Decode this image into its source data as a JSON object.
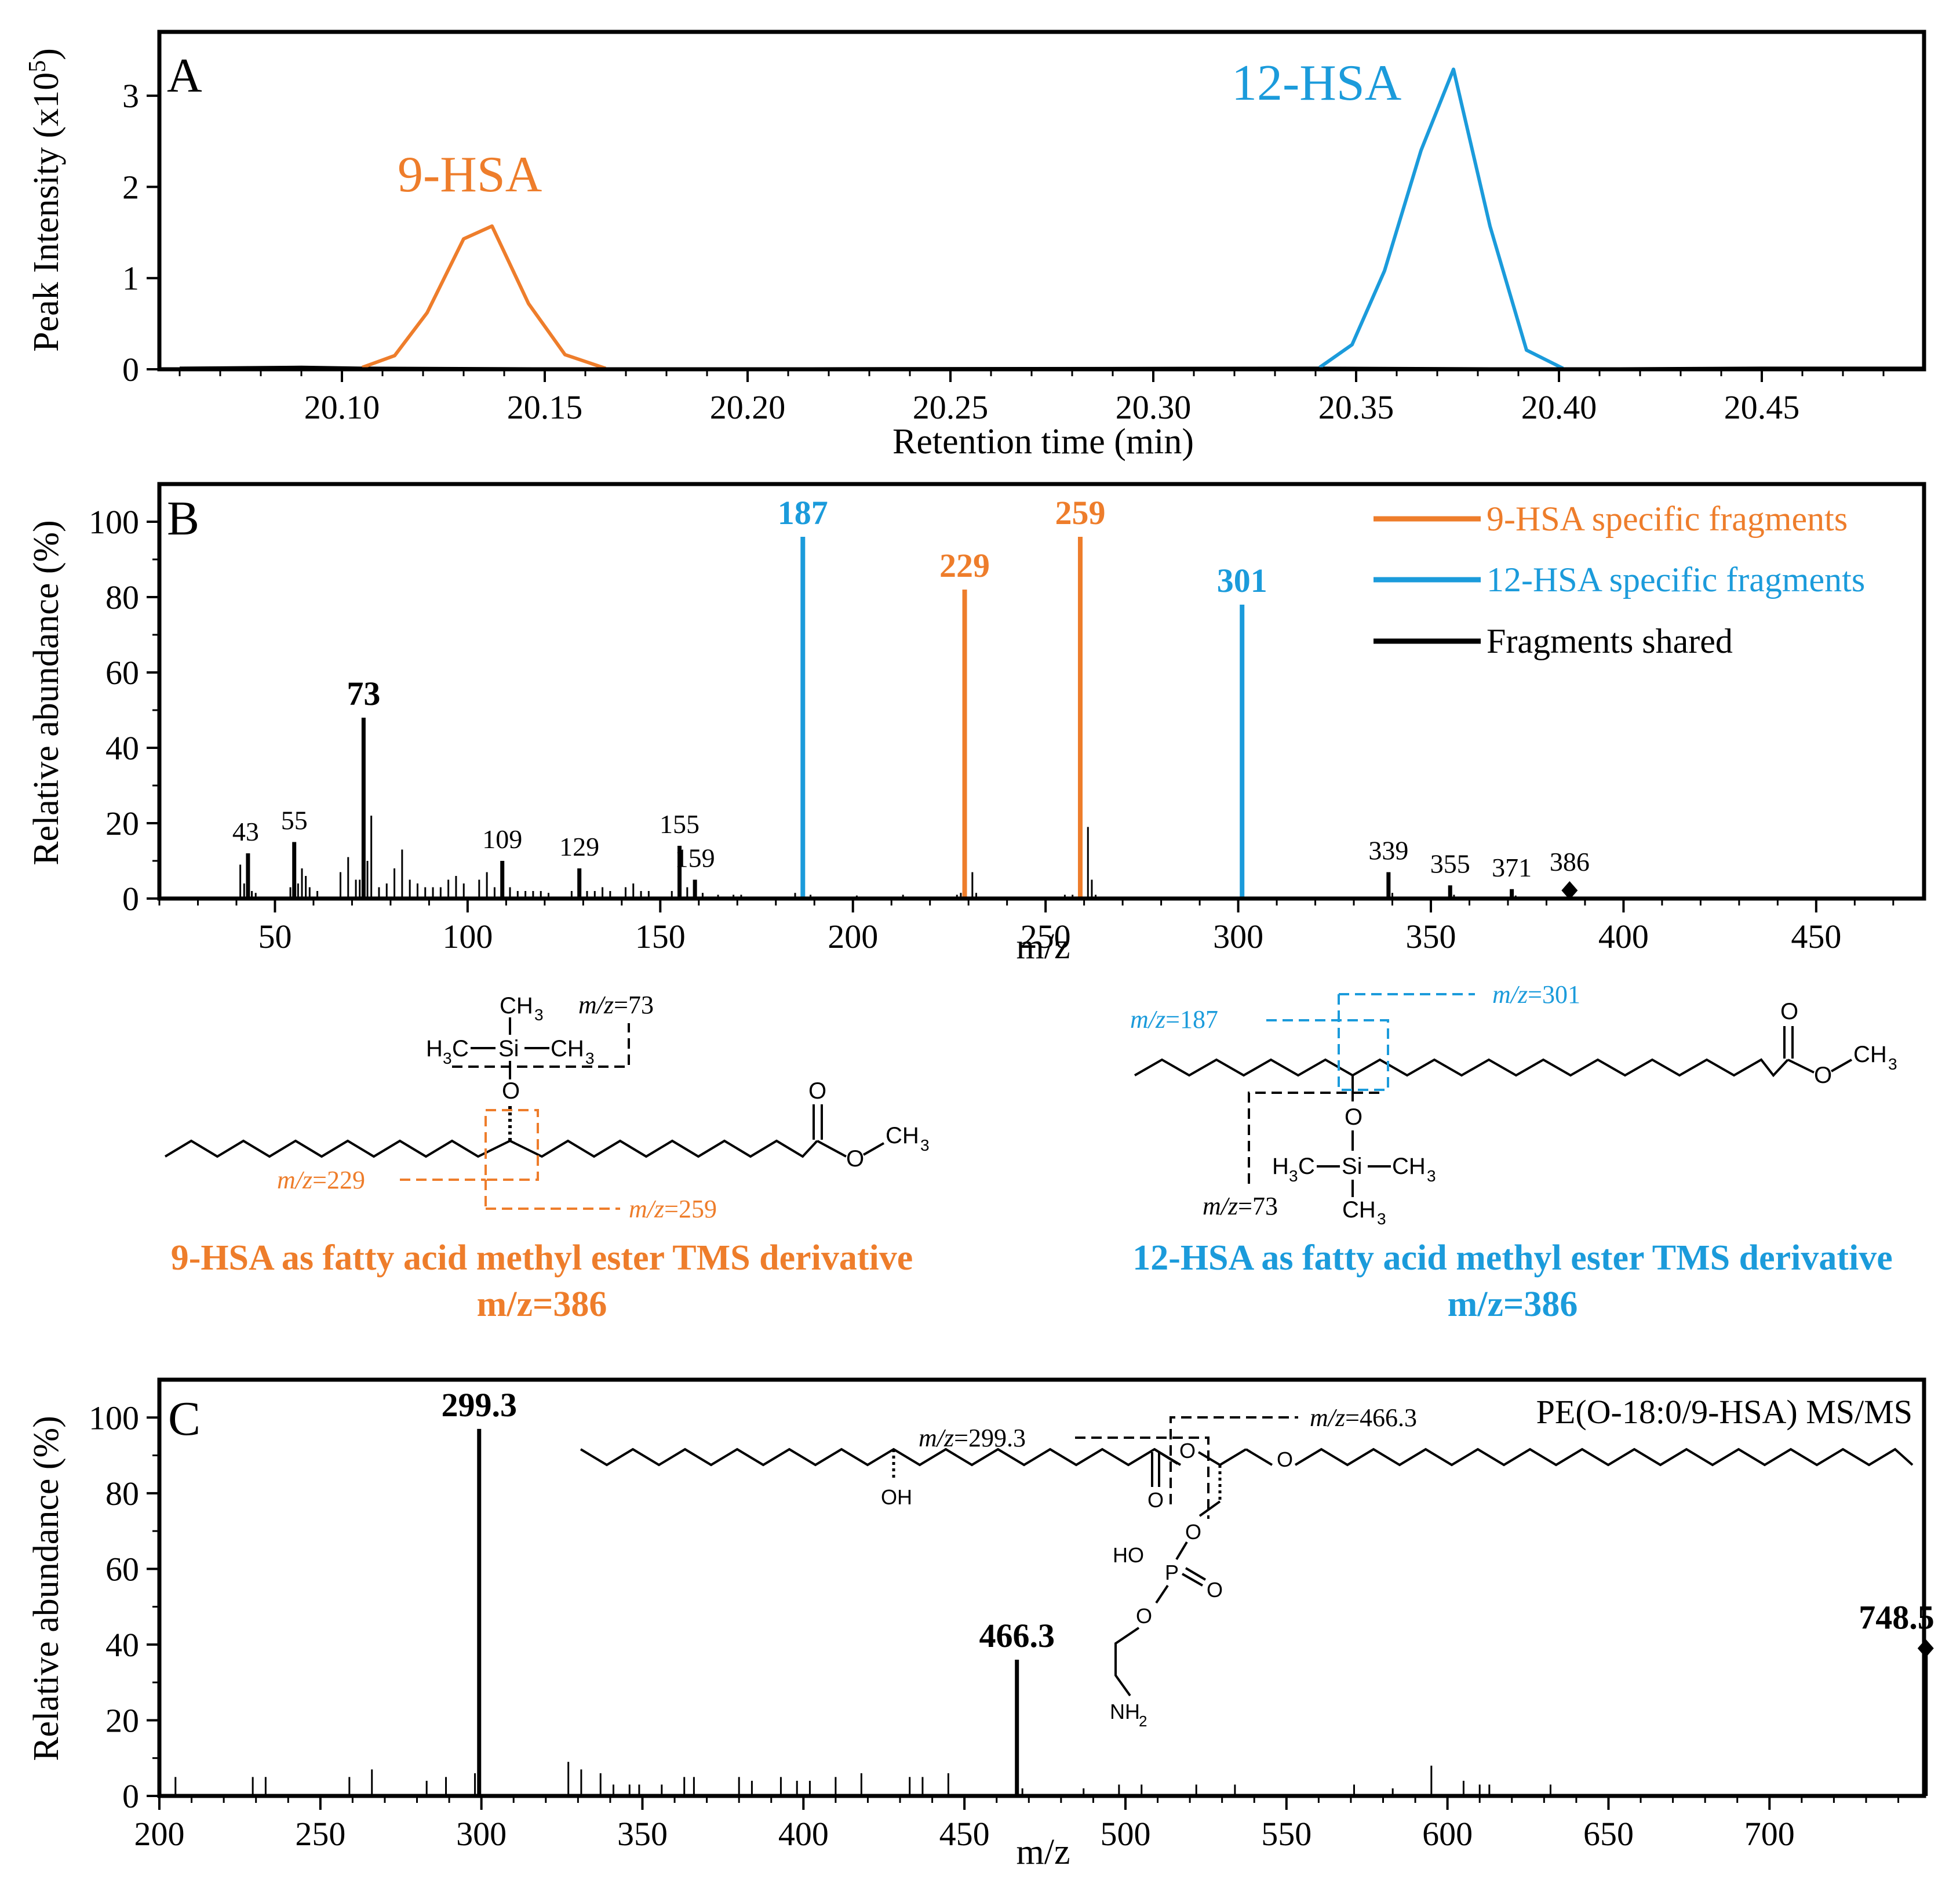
{
  "colors": {
    "orange": "#EE7D2B",
    "blue": "#1B9BDB",
    "black": "#000000"
  },
  "chart_data": [
    {
      "type": "line",
      "panel": "A",
      "xlabel": "Retention time (min)",
      "ylabel": "Peak Intensity (x10",
      "ylabel_sup": "5",
      "ylabel_end": ")",
      "xlim": [
        20.055,
        20.49
      ],
      "ylim": [
        0,
        3.7
      ],
      "xticks": [
        20.1,
        20.15,
        20.2,
        20.25,
        20.3,
        20.35,
        20.4,
        20.45
      ],
      "xtick_labels": [
        "20.10",
        "20.15",
        "20.20",
        "20.25",
        "20.30",
        "20.35",
        "20.40",
        "20.45"
      ],
      "yticks": [
        0,
        1,
        2,
        3
      ],
      "ytick_labels": [
        "0",
        "1",
        "2",
        "3"
      ],
      "baseline": [
        [
          20.06,
          0.02
        ],
        [
          20.09,
          0.03
        ],
        [
          20.105,
          0.02
        ],
        [
          20.165,
          0.01
        ],
        [
          20.34,
          0.02
        ],
        [
          20.4,
          0.01
        ],
        [
          20.45,
          0.02
        ],
        [
          20.49,
          0.02
        ]
      ],
      "series": [
        {
          "name": "9-HSA",
          "color": "#EE7D2B",
          "x": [
            20.105,
            20.113,
            20.121,
            20.13,
            20.137,
            20.146,
            20.155,
            20.165
          ],
          "y": [
            0.02,
            0.15,
            0.62,
            1.43,
            1.57,
            0.72,
            0.16,
            0.01
          ]
        },
        {
          "name": "12-HSA",
          "color": "#1B9BDB",
          "x": [
            20.341,
            20.349,
            20.357,
            20.366,
            20.374,
            20.383,
            20.392,
            20.401
          ],
          "y": [
            0.02,
            0.27,
            1.08,
            2.4,
            3.29,
            1.57,
            0.21,
            0.01
          ]
        }
      ],
      "annotations": [
        {
          "text": "9-HSA",
          "color": "#EE7D2B"
        },
        {
          "text": "12-HSA",
          "color": "#1B9BDB"
        }
      ]
    },
    {
      "type": "bar",
      "panel": "B",
      "xlabel": "m/z",
      "ylabel": "Relative abundance (%)",
      "xlim": [
        20,
        478
      ],
      "ylim": [
        0,
        110
      ],
      "xticks": [
        50,
        100,
        150,
        200,
        250,
        300,
        350,
        400,
        450
      ],
      "xtick_labels": [
        "50",
        "100",
        "150",
        "200",
        "250",
        "300",
        "350",
        "400",
        "450"
      ],
      "yticks": [
        0,
        20,
        40,
        60,
        80,
        100
      ],
      "ytick_labels": [
        "0",
        "20",
        "40",
        "60",
        "80",
        "100"
      ],
      "legend": [
        {
          "label": "9-HSA specific fragments",
          "color": "#EE7D2B"
        },
        {
          "label": "12-HSA specific fragments",
          "color": "#1B9BDB"
        },
        {
          "label": "Fragments shared",
          "color": "#000000"
        }
      ],
      "legend_position": "top-right",
      "labeled_peaks": [
        {
          "mz": 43,
          "value": 12,
          "label": "43",
          "color": "#000000",
          "bold": false
        },
        {
          "mz": 55,
          "value": 15,
          "label": "55",
          "color": "#000000",
          "bold": false
        },
        {
          "mz": 73,
          "value": 48,
          "label": "73",
          "color": "#000000",
          "bold": true
        },
        {
          "mz": 109,
          "value": 10,
          "label": "109",
          "color": "#000000",
          "bold": false
        },
        {
          "mz": 129,
          "value": 8,
          "label": "129",
          "color": "#000000",
          "bold": false
        },
        {
          "mz": 155,
          "value": 14,
          "label": "155",
          "color": "#000000",
          "bold": false
        },
        {
          "mz": 159,
          "value": 5,
          "label": "159",
          "color": "#000000",
          "bold": false
        },
        {
          "mz": 187,
          "value": 96,
          "label": "187",
          "color": "#1B9BDB",
          "bold": true
        },
        {
          "mz": 229,
          "value": 82,
          "label": "229",
          "color": "#EE7D2B",
          "bold": true
        },
        {
          "mz": 259,
          "value": 96,
          "label": "259",
          "color": "#EE7D2B",
          "bold": true
        },
        {
          "mz": 301,
          "value": 78,
          "label": "301",
          "color": "#1B9BDB",
          "bold": true
        },
        {
          "mz": 339,
          "value": 7,
          "label": "339",
          "color": "#000000",
          "bold": false
        },
        {
          "mz": 355,
          "value": 3.5,
          "label": "355",
          "color": "#000000",
          "bold": false
        },
        {
          "mz": 371,
          "value": 2.5,
          "label": "371",
          "color": "#000000",
          "bold": false
        },
        {
          "mz": 386,
          "value": 0,
          "label": "386",
          "color": "#000000",
          "bold": false,
          "marker": "diamond"
        }
      ],
      "minor_peaks": [
        [
          41,
          9
        ],
        [
          42,
          4
        ],
        [
          44,
          2
        ],
        [
          45,
          1.5
        ],
        [
          54,
          3
        ],
        [
          56,
          4
        ],
        [
          57,
          8
        ],
        [
          58,
          6
        ],
        [
          59,
          3
        ],
        [
          61,
          2
        ],
        [
          67,
          7
        ],
        [
          69,
          11
        ],
        [
          71,
          5
        ],
        [
          72,
          5
        ],
        [
          74,
          10
        ],
        [
          75,
          22
        ],
        [
          77,
          3
        ],
        [
          79,
          4
        ],
        [
          81,
          8
        ],
        [
          83,
          13
        ],
        [
          85,
          5
        ],
        [
          87,
          4
        ],
        [
          89,
          3
        ],
        [
          91,
          3
        ],
        [
          93,
          3
        ],
        [
          95,
          5
        ],
        [
          97,
          6
        ],
        [
          99,
          4
        ],
        [
          103,
          5
        ],
        [
          105,
          7
        ],
        [
          107,
          3
        ],
        [
          111,
          3
        ],
        [
          113,
          2
        ],
        [
          115,
          2
        ],
        [
          117,
          2
        ],
        [
          119,
          2
        ],
        [
          121,
          1.5
        ],
        [
          127,
          2
        ],
        [
          131,
          2
        ],
        [
          133,
          2
        ],
        [
          135,
          3
        ],
        [
          137,
          2
        ],
        [
          141,
          3
        ],
        [
          143,
          4
        ],
        [
          145,
          2
        ],
        [
          147,
          2
        ],
        [
          153,
          2
        ],
        [
          157,
          3
        ],
        [
          161,
          1.5
        ],
        [
          165,
          1
        ],
        [
          169,
          1
        ],
        [
          171,
          1
        ],
        [
          185,
          1.5
        ],
        [
          189,
          1
        ],
        [
          201,
          0.8
        ],
        [
          213,
          1
        ],
        [
          227,
          1
        ],
        [
          228,
          1.5
        ],
        [
          231,
          7
        ],
        [
          232,
          1.5
        ],
        [
          255,
          1
        ],
        [
          257,
          1
        ],
        [
          261,
          19
        ],
        [
          262,
          5
        ],
        [
          263,
          1
        ],
        [
          340,
          1.5
        ],
        [
          356,
          1
        ],
        [
          372,
          0.8
        ]
      ]
    },
    {
      "type": "bar",
      "panel": "C",
      "title": "PE(O-18:0/9-HSA) MS/MS",
      "xlabel": "m/z",
      "ylabel": "Relative abundance (%)",
      "xlim": [
        200,
        748
      ],
      "ylim": [
        0,
        110
      ],
      "xticks": [
        200,
        250,
        300,
        350,
        400,
        450,
        500,
        550,
        600,
        650,
        700
      ],
      "xtick_labels": [
        "200",
        "250",
        "300",
        "350",
        "400",
        "450",
        "500",
        "550",
        "600",
        "650",
        "700"
      ],
      "yticks": [
        0,
        20,
        40,
        60,
        80,
        100
      ],
      "ytick_labels": [
        "0",
        "20",
        "40",
        "60",
        "80",
        "100"
      ],
      "labeled_peaks": [
        {
          "mz": 299.3,
          "value": 97,
          "label": "299.3",
          "color": "#000000",
          "bold": true
        },
        {
          "mz": 466.3,
          "value": 36,
          "label": "466.3",
          "color": "#000000",
          "bold": true
        },
        {
          "mz": 748.5,
          "value": 39,
          "label": "748.5",
          "color": "#000000",
          "bold": true,
          "marker": "diamond"
        }
      ],
      "minor_peaks": [
        [
          205,
          5
        ],
        [
          229,
          5
        ],
        [
          233,
          5
        ],
        [
          259,
          5
        ],
        [
          266,
          7
        ],
        [
          283,
          4
        ],
        [
          289,
          5
        ],
        [
          298,
          6
        ],
        [
          327,
          9
        ],
        [
          331,
          7
        ],
        [
          337,
          6
        ],
        [
          341,
          3
        ],
        [
          346,
          3
        ],
        [
          349,
          3
        ],
        [
          356,
          3
        ],
        [
          363,
          5
        ],
        [
          366,
          5
        ],
        [
          380,
          5
        ],
        [
          384,
          4
        ],
        [
          393,
          5
        ],
        [
          398,
          4
        ],
        [
          402,
          4
        ],
        [
          410,
          5
        ],
        [
          418,
          6
        ],
        [
          433,
          5
        ],
        [
          437,
          5
        ],
        [
          445,
          6
        ],
        [
          468,
          2
        ],
        [
          487,
          2
        ],
        [
          498,
          3
        ],
        [
          505,
          3
        ],
        [
          522,
          3
        ],
        [
          534,
          3
        ],
        [
          571,
          3
        ],
        [
          583,
          2
        ],
        [
          595,
          8
        ],
        [
          605,
          4
        ],
        [
          610,
          3
        ],
        [
          613,
          3
        ],
        [
          632,
          3
        ]
      ]
    }
  ],
  "panel_labels": {
    "a": "A",
    "b": "B",
    "c": "C"
  },
  "structures": {
    "hsa9": {
      "caption_line1": "9-HSA as fatty acid methyl ester TMS derivative",
      "caption_line2": "m/z=386",
      "frag_73": "=73",
      "frag_229": "=229",
      "frag_259": "=259",
      "mz_italic": "m/z",
      "ch3": "CH",
      "h3c": "H",
      "h3c_c": "C",
      "si": "Si",
      "sub3": "3",
      "o": "O"
    },
    "hsa12": {
      "caption_line1": "12-HSA as fatty acid methyl ester TMS derivative",
      "caption_line2": "m/z=386",
      "frag_187": "=187",
      "frag_301": "=301",
      "frag_73": "=73"
    },
    "pe": {
      "frag_466": "=466.3",
      "frag_299": "=299.3",
      "oh": "OH",
      "ho": "HO",
      "p": "P",
      "nh": "NH",
      "sub2": "2"
    }
  }
}
